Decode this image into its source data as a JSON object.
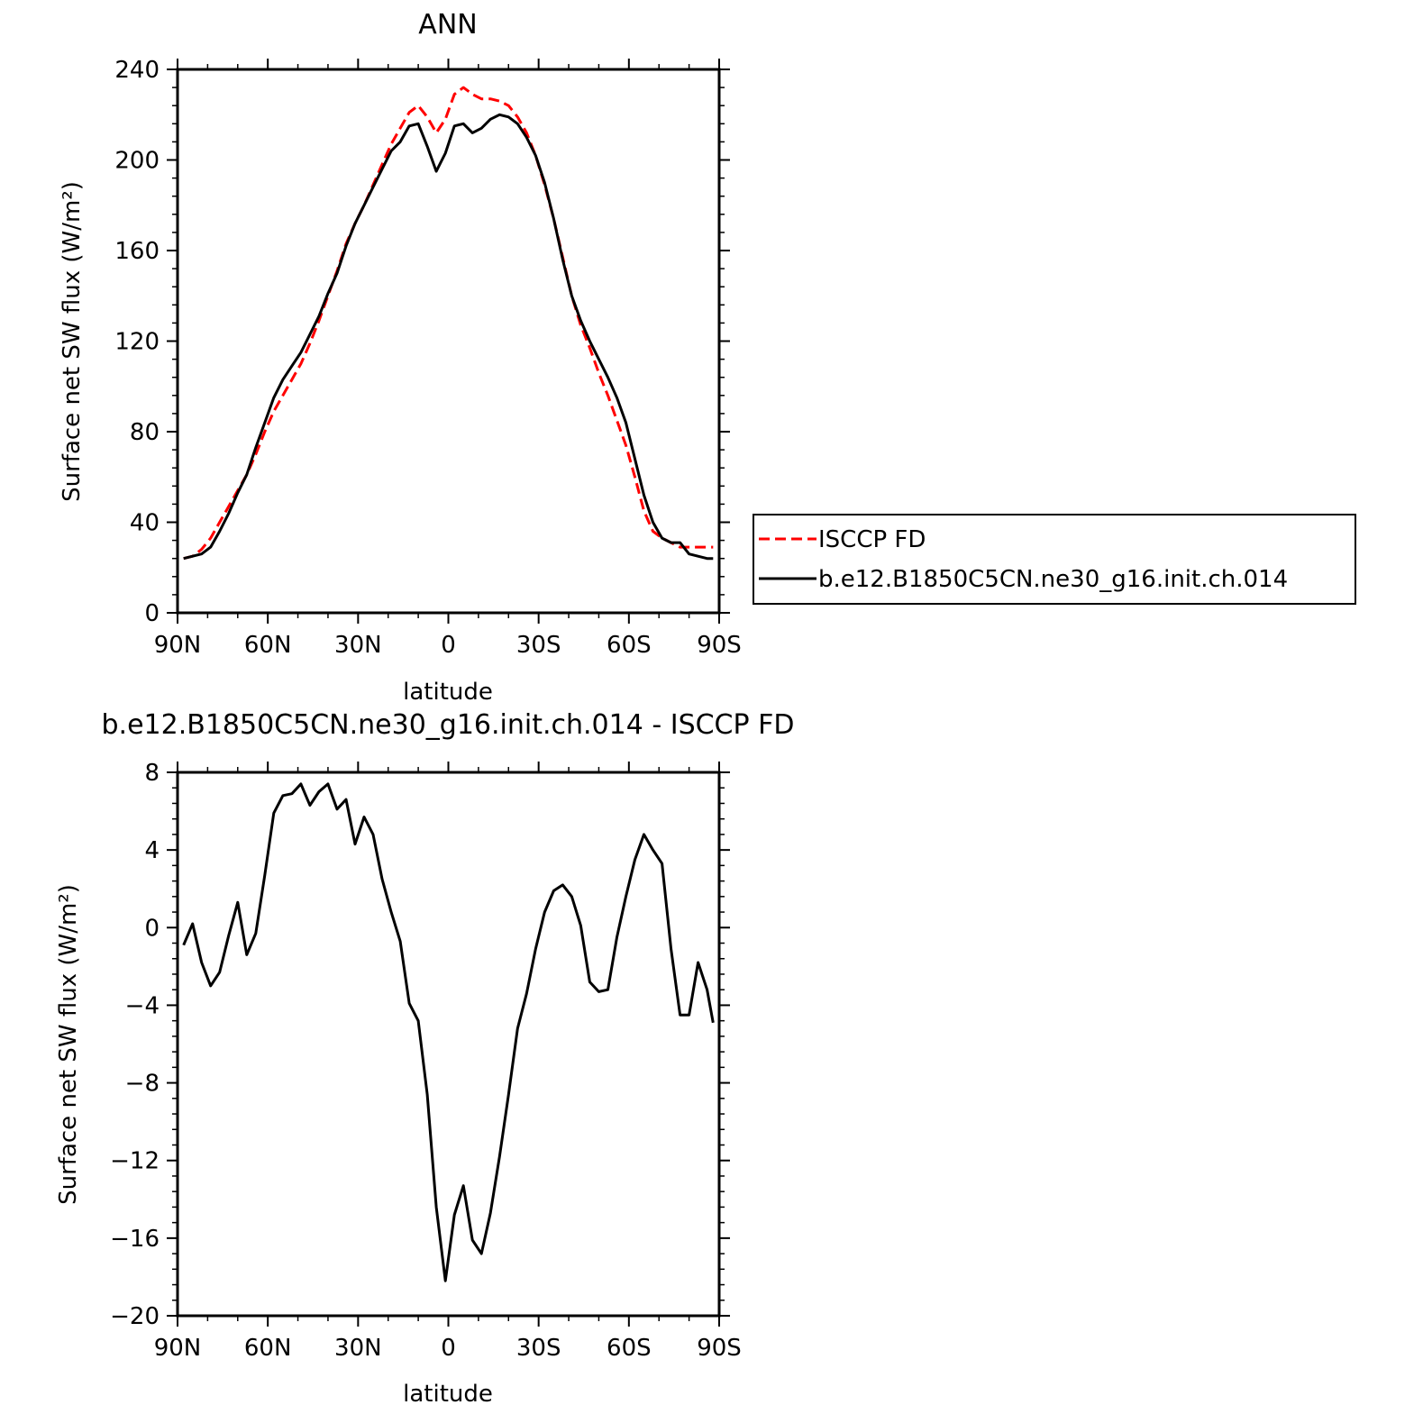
{
  "chart_data": [
    {
      "type": "line",
      "title": "ANN",
      "xlabel": "latitude",
      "ylabel": "Surface net SW flux (W/m²)",
      "xlim": [
        -90,
        90
      ],
      "ylim": [
        0,
        240
      ],
      "xticks": [
        {
          "value": -90,
          "label": "90N"
        },
        {
          "value": -60,
          "label": "60N"
        },
        {
          "value": -30,
          "label": "30N"
        },
        {
          "value": 0,
          "label": "0"
        },
        {
          "value": 30,
          "label": "30S"
        },
        {
          "value": 60,
          "label": "60S"
        },
        {
          "value": 90,
          "label": "90S"
        }
      ],
      "yticks": [
        {
          "value": 0,
          "label": "0"
        },
        {
          "value": 40,
          "label": "40"
        },
        {
          "value": 80,
          "label": "80"
        },
        {
          "value": 120,
          "label": "120"
        },
        {
          "value": 160,
          "label": "160"
        },
        {
          "value": 200,
          "label": "200"
        },
        {
          "value": 240,
          "label": "240"
        }
      ],
      "legend_position": "right",
      "series": [
        {
          "name": "ISCCP FD",
          "color": "#ff0000",
          "dash": "dashed",
          "x": [
            -88,
            -85,
            -82,
            -79,
            -76,
            -73,
            -70,
            -67,
            -64,
            -61,
            -58,
            -55,
            -52,
            -49,
            -46,
            -43,
            -40,
            -37,
            -34,
            -31,
            -28,
            -25,
            -22,
            -19,
            -16,
            -13,
            -10,
            -7,
            -4,
            -1,
            2,
            5,
            8,
            11,
            14,
            17,
            20,
            23,
            26,
            29,
            32,
            35,
            38,
            41,
            44,
            47,
            50,
            53,
            56,
            59,
            62,
            65,
            68,
            71,
            74,
            77,
            80,
            83,
            86,
            88
          ],
          "y": [
            24,
            25,
            28,
            33,
            40,
            47,
            54,
            61,
            70,
            80,
            89,
            96,
            103,
            110,
            119,
            129,
            140,
            151,
            163,
            172,
            180,
            189,
            198,
            207,
            214,
            221,
            224,
            219,
            212,
            218,
            229,
            232,
            229,
            227,
            227,
            226,
            224,
            219,
            212,
            202,
            189,
            174,
            157,
            140,
            127,
            117,
            106,
            96,
            85,
            74,
            60,
            45,
            36,
            33,
            31,
            29,
            29,
            29,
            29,
            29
          ]
        },
        {
          "name": "b.e12.B1850C5CN.ne30_g16.init.ch.014",
          "color": "#000000",
          "dash": "solid",
          "x": [
            -88,
            -85,
            -82,
            -79,
            -76,
            -73,
            -70,
            -67,
            -64,
            -61,
            -58,
            -55,
            -52,
            -49,
            -46,
            -43,
            -40,
            -37,
            -34,
            -31,
            -28,
            -25,
            -22,
            -19,
            -16,
            -13,
            -10,
            -7,
            -4,
            -1,
            2,
            5,
            8,
            11,
            14,
            17,
            20,
            23,
            26,
            29,
            32,
            35,
            38,
            41,
            44,
            47,
            50,
            53,
            56,
            59,
            62,
            65,
            68,
            71,
            74,
            77,
            80,
            83,
            86,
            88
          ],
          "y": [
            24,
            25,
            26,
            29,
            36,
            44,
            53,
            61,
            73,
            84,
            95,
            103,
            109,
            115,
            123,
            131,
            141,
            150,
            162,
            172,
            180,
            188,
            196,
            204,
            208,
            215,
            216,
            206,
            195,
            203,
            215,
            216,
            212,
            214,
            218,
            220,
            219,
            216,
            210,
            202,
            190,
            174,
            156,
            140,
            129,
            120,
            112,
            104,
            95,
            84,
            68,
            52,
            40,
            33,
            31,
            31,
            26,
            25,
            24,
            24
          ]
        }
      ]
    },
    {
      "type": "line",
      "title": "b.e12.B1850C5CN.ne30_g16.init.ch.014 - ISCCP FD",
      "xlabel": "latitude",
      "ylabel": "Surface net SW flux (W/m²)",
      "xlim": [
        -90,
        90
      ],
      "ylim": [
        -20,
        8
      ],
      "xticks": [
        {
          "value": -90,
          "label": "90N"
        },
        {
          "value": -60,
          "label": "60N"
        },
        {
          "value": -30,
          "label": "30N"
        },
        {
          "value": 0,
          "label": "0"
        },
        {
          "value": 30,
          "label": "30S"
        },
        {
          "value": 60,
          "label": "60S"
        },
        {
          "value": 90,
          "label": "90S"
        }
      ],
      "yticks": [
        {
          "value": -20,
          "label": "−20"
        },
        {
          "value": -16,
          "label": "−16"
        },
        {
          "value": -12,
          "label": "−12"
        },
        {
          "value": -8,
          "label": "−8"
        },
        {
          "value": -4,
          "label": "−4"
        },
        {
          "value": 0,
          "label": "0"
        },
        {
          "value": 4,
          "label": "4"
        },
        {
          "value": 8,
          "label": "8"
        }
      ],
      "series": [
        {
          "color": "#000000",
          "dash": "solid",
          "x": [
            -88,
            -85,
            -82,
            -79,
            -76,
            -73,
            -70,
            -67,
            -64,
            -61,
            -58,
            -55,
            -52,
            -49,
            -46,
            -43,
            -40,
            -37,
            -34,
            -31,
            -28,
            -25,
            -22,
            -19,
            -16,
            -13,
            -10,
            -7,
            -4,
            -1,
            2,
            5,
            8,
            11,
            14,
            17,
            20,
            23,
            26,
            29,
            32,
            35,
            38,
            41,
            44,
            47,
            50,
            53,
            56,
            59,
            62,
            65,
            68,
            71,
            74,
            77,
            80,
            83,
            86,
            88
          ],
          "y": [
            -0.9,
            0.2,
            -1.8,
            -3.0,
            -2.3,
            -0.4,
            1.3,
            -1.4,
            -0.3,
            2.7,
            5.9,
            6.8,
            6.9,
            7.4,
            6.3,
            7.0,
            7.4,
            6.1,
            6.6,
            4.3,
            5.7,
            4.8,
            2.5,
            0.8,
            -0.7,
            -3.9,
            -4.8,
            -8.6,
            -14.4,
            -18.2,
            -14.8,
            -13.3,
            -16.1,
            -16.8,
            -14.7,
            -11.8,
            -8.6,
            -5.2,
            -3.4,
            -1.1,
            0.8,
            1.9,
            2.2,
            1.6,
            0.1,
            -2.8,
            -3.3,
            -3.2,
            -0.5,
            1.6,
            3.5,
            4.8,
            4.0,
            3.3,
            -1.1,
            -4.5,
            -4.5,
            -1.8,
            -3.2,
            -4.9
          ]
        }
      ]
    }
  ]
}
